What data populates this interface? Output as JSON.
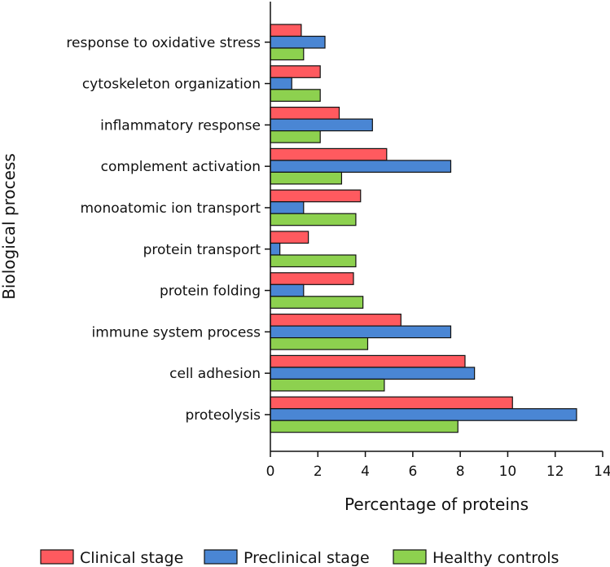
{
  "chart_data": {
    "type": "bar",
    "orientation": "horizontal",
    "categories": [
      "response to oxidative stress",
      "cytoskeleton organization",
      "inflammatory response",
      "complement activation",
      "monoatomic ion transport",
      "protein transport",
      "protein folding",
      "immune system process",
      "cell adhesion",
      "proteolysis"
    ],
    "series": [
      {
        "name": "Clinical stage",
        "color": "#ff5a5f",
        "values": [
          1.3,
          2.1,
          2.9,
          4.9,
          3.8,
          1.6,
          3.5,
          5.5,
          8.2,
          10.2
        ]
      },
      {
        "name": "Preclinical stage",
        "color": "#4a86d4",
        "values": [
          2.3,
          0.9,
          4.3,
          7.6,
          1.4,
          0.4,
          1.4,
          7.6,
          8.6,
          12.9
        ]
      },
      {
        "name": "Healthy controls",
        "color": "#8dd14f",
        "values": [
          1.4,
          2.1,
          2.1,
          3.0,
          3.6,
          3.6,
          3.9,
          4.1,
          4.8,
          7.9
        ]
      }
    ],
    "xlabel": "Percentage of proteins",
    "ylabel": "Biological process",
    "xlim": [
      0,
      14
    ],
    "xticks": [
      "0",
      "2",
      "4",
      "6",
      "8",
      "10",
      "12",
      "14"
    ],
    "legend_position": "bottom"
  }
}
